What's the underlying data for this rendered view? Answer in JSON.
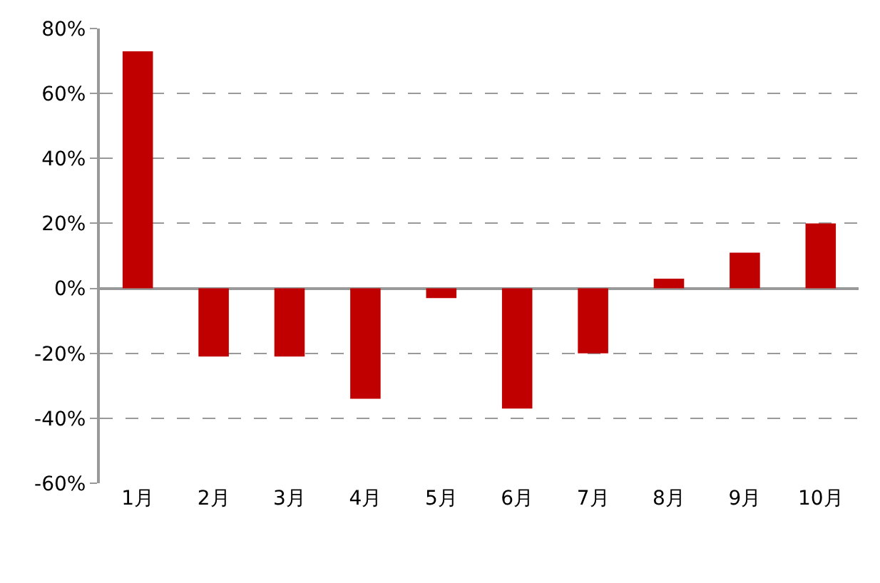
{
  "chart_data": {
    "type": "bar",
    "categories": [
      "1月",
      "2月",
      "3月",
      "4月",
      "5月",
      "6月",
      "7月",
      "8月",
      "9月",
      "10月"
    ],
    "series": [
      {
        "color": "#c00000",
        "values": [
          73,
          -21,
          -21,
          -34,
          -3,
          -37,
          -20,
          3,
          11,
          20
        ]
      }
    ],
    "ylim": [
      -60,
      80
    ],
    "yticks": [
      {
        "value": -60,
        "label": "-60%"
      },
      {
        "value": -40,
        "label": "-40%"
      },
      {
        "value": -20,
        "label": "-20%"
      },
      {
        "value": 0,
        "label": "0%"
      },
      {
        "value": 20,
        "label": "20%"
      },
      {
        "value": 40,
        "label": "40%"
      },
      {
        "value": 60,
        "label": "60%"
      },
      {
        "value": 80,
        "label": "80%"
      }
    ],
    "grid": "y"
  }
}
